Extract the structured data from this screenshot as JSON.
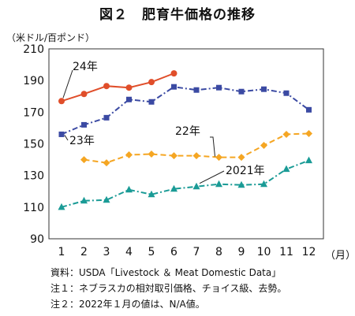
{
  "chart_data": {
    "type": "line",
    "title": "図２　肥育牛価格の推移",
    "ylabel": "（米ドル/百ポンド）",
    "xlabel": "（月）",
    "x": [
      1,
      2,
      3,
      4,
      5,
      6,
      7,
      8,
      9,
      10,
      11,
      12
    ],
    "ylim": [
      90,
      210
    ],
    "yticks": [
      90,
      110,
      130,
      150,
      170,
      190,
      210
    ],
    "grid": false,
    "series": [
      {
        "name": "2021年",
        "color": "#1a9b96",
        "marker": "triangle",
        "style": "dashdot",
        "values": [
          110,
          114,
          114.5,
          121,
          118,
          121.5,
          123,
          124.5,
          124,
          124.5,
          134,
          139.5
        ]
      },
      {
        "name": "22年",
        "color": "#f5a623",
        "marker": "diamond",
        "style": "dashed",
        "values": [
          null,
          140,
          138,
          143,
          143.5,
          142.5,
          142.5,
          141.5,
          141.5,
          149,
          156,
          156.5
        ]
      },
      {
        "name": "23年",
        "color": "#3b4aa3",
        "marker": "square",
        "style": "dashdot",
        "values": [
          156,
          162,
          166.5,
          178,
          176.5,
          186,
          184,
          185.5,
          183,
          184.5,
          182,
          171.5
        ]
      },
      {
        "name": "24年",
        "color": "#e04e2a",
        "marker": "circle",
        "style": "solid",
        "values": [
          177,
          181.5,
          186.5,
          185.5,
          189,
          194.5,
          null,
          null,
          null,
          null,
          null,
          null
        ]
      }
    ]
  },
  "notes": [
    "資料：USDA「Livestock ＆ Meat Domestic Data」",
    "注１：ネブラスカの相対取引価格、チョイス級、去勢。",
    "注２：2022年１月の値は、N/A値。"
  ]
}
